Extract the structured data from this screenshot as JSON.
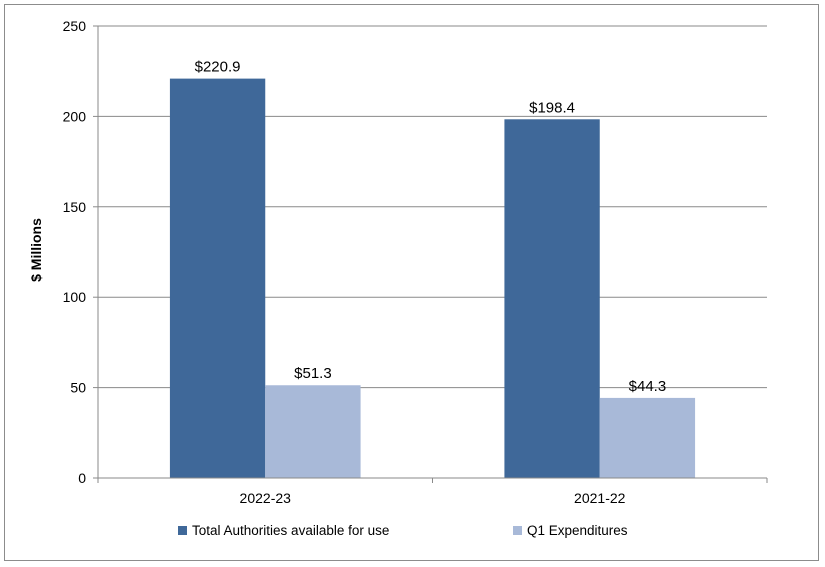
{
  "chart_data": {
    "type": "bar",
    "title": "",
    "xlabel": "",
    "ylabel": "$ Millions",
    "ylim": [
      0,
      250
    ],
    "yticks": [
      0,
      50,
      100,
      150,
      200,
      250
    ],
    "grid": true,
    "legend_position": "bottom",
    "categories": [
      "2022-23",
      "2021-22"
    ],
    "series": [
      {
        "name": "Total Authorities available for use",
        "color": "#3f6899",
        "values": [
          220.9,
          198.4
        ],
        "labels": [
          "$220.9",
          "$198.4"
        ]
      },
      {
        "name": "Q1 Expenditures",
        "color": "#a8b9d8",
        "values": [
          51.3,
          44.3
        ],
        "labels": [
          "$51.3",
          "$44.3"
        ]
      }
    ]
  }
}
